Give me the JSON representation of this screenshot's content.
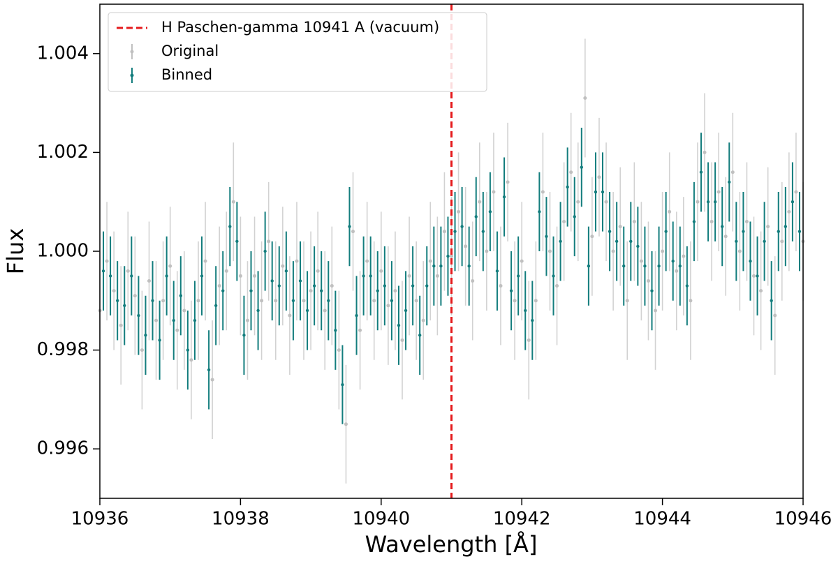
{
  "chart_data": {
    "type": "errorbar",
    "xlabel": "Wavelength [Å]",
    "ylabel": "Flux",
    "xlim": [
      10936,
      10946
    ],
    "ylim": [
      0.995,
      1.005
    ],
    "xticks": [
      10936,
      10938,
      10940,
      10942,
      10944,
      10946
    ],
    "yticks": [
      0.996,
      0.998,
      {
        "value": 1,
        "label": "1.000"
      },
      1.002,
      1.004
    ],
    "vline": {
      "x": 10941,
      "label": "H Paschen-gamma 10941 A (vacuum)",
      "color": "#e41a1c"
    },
    "legend": "upper left",
    "series": [
      {
        "name": "Original",
        "color": "#c0c0c0",
        "error": 0.0012,
        "x": [
          10936.0,
          10936.1,
          10936.2,
          10936.3,
          10936.4,
          10936.5,
          10936.6,
          10936.7,
          10936.8,
          10936.9,
          10937.0,
          10937.1,
          10937.2,
          10937.3,
          10937.4,
          10937.5,
          10937.6,
          10937.7,
          10937.8,
          10937.9,
          10938.0,
          10938.1,
          10938.2,
          10938.3,
          10938.4,
          10938.5,
          10938.6,
          10938.7,
          10938.8,
          10938.9,
          10939.0,
          10939.1,
          10939.2,
          10939.3,
          10939.4,
          10939.5,
          10939.6,
          10939.7,
          10939.8,
          10939.9,
          10940.0,
          10940.1,
          10940.2,
          10940.3,
          10940.4,
          10940.5,
          10940.6,
          10940.7,
          10940.8,
          10940.9,
          10941.0,
          10941.1,
          10941.2,
          10941.3,
          10941.4,
          10941.5,
          10941.6,
          10941.7,
          10941.8,
          10941.9,
          10942.0,
          10942.1,
          10942.2,
          10942.3,
          10942.4,
          10942.5,
          10942.6,
          10942.7,
          10942.8,
          10942.9,
          10943.0,
          10943.1,
          10943.2,
          10943.3,
          10943.4,
          10943.5,
          10943.6,
          10943.7,
          10943.8,
          10943.9,
          10944.0,
          10944.1,
          10944.2,
          10944.3,
          10944.4,
          10944.5,
          10944.6,
          10944.7,
          10944.8,
          10944.9,
          10945.0,
          10945.1,
          10945.2,
          10945.3,
          10945.4,
          10945.5,
          10945.6,
          10945.7,
          10945.8,
          10945.9,
          10946.0
        ],
        "values": [
          0.9988,
          0.9998,
          0.9992,
          0.9985,
          0.9996,
          0.9991,
          0.998,
          0.9994,
          0.9986,
          0.999,
          0.9997,
          0.9984,
          0.9988,
          0.9978,
          0.999,
          0.9998,
          0.9974,
          0.9993,
          0.9996,
          1.001,
          0.9995,
          0.9986,
          0.9995,
          0.999,
          1.0002,
          0.999,
          0.9997,
          0.9987,
          0.9998,
          0.999,
          0.9992,
          0.9996,
          0.9988,
          0.9993,
          0.998,
          0.9965,
          1.0004,
          0.9984,
          0.9998,
          0.999,
          0.9996,
          0.9989,
          0.9992,
          0.9982,
          0.9995,
          0.999,
          0.9986,
          0.9998,
          0.9995,
          1.0004,
          0.9999,
          1.0008,
          1.0001,
          0.9994,
          1.001,
          1.0,
          1.0012,
          0.9993,
          1.0014,
          0.999,
          0.9998,
          0.9982,
          0.999,
          1.0012,
          1.0,
          0.9993,
          1.0006,
          1.0016,
          1.001,
          1.0031,
          1.0003,
          1.0015,
          1.001,
          1.0,
          1.0005,
          0.999,
          1.0006,
          0.9998,
          0.9994,
          0.9988,
          1.0,
          1.0008,
          0.9996,
          0.9999,
          0.999,
          1.001,
          1.002,
          1.0006,
          1.0012,
          1.0003,
          1.0016,
          1.0,
          1.0006,
          0.9995,
          0.9992,
          1.0005,
          0.9987,
          1.0002,
          1.0008,
          1.0012,
          1.0002
        ]
      },
      {
        "name": "Binned",
        "color": "#137d7d",
        "error": 0.0008,
        "x": [
          10936.05,
          10936.15,
          10936.25,
          10936.35,
          10936.45,
          10936.55,
          10936.65,
          10936.75,
          10936.85,
          10936.95,
          10937.05,
          10937.15,
          10937.25,
          10937.35,
          10937.45,
          10937.55,
          10937.65,
          10937.75,
          10937.85,
          10937.95,
          10938.05,
          10938.15,
          10938.25,
          10938.35,
          10938.45,
          10938.55,
          10938.65,
          10938.75,
          10938.85,
          10938.95,
          10939.05,
          10939.15,
          10939.25,
          10939.35,
          10939.45,
          10939.55,
          10939.65,
          10939.75,
          10939.85,
          10939.95,
          10940.05,
          10940.15,
          10940.25,
          10940.35,
          10940.45,
          10940.55,
          10940.65,
          10940.75,
          10940.85,
          10940.95,
          10941.05,
          10941.15,
          10941.25,
          10941.35,
          10941.45,
          10941.55,
          10941.65,
          10941.75,
          10941.85,
          10941.95,
          10942.05,
          10942.15,
          10942.25,
          10942.35,
          10942.45,
          10942.55,
          10942.65,
          10942.75,
          10942.85,
          10942.95,
          10943.05,
          10943.15,
          10943.25,
          10943.35,
          10943.45,
          10943.55,
          10943.65,
          10943.75,
          10943.85,
          10943.95,
          10944.05,
          10944.15,
          10944.25,
          10944.35,
          10944.45,
          10944.55,
          10944.65,
          10944.75,
          10944.85,
          10944.95,
          10945.05,
          10945.15,
          10945.25,
          10945.35,
          10945.45,
          10945.55,
          10945.65,
          10945.75,
          10945.85,
          10945.95
        ],
        "values": [
          0.9996,
          0.9995,
          0.999,
          0.9989,
          0.9995,
          0.9987,
          0.9983,
          0.999,
          0.9982,
          0.9995,
          0.9986,
          0.9991,
          0.998,
          0.9986,
          0.9995,
          0.9976,
          0.9989,
          0.9992,
          1.0005,
          1.0002,
          0.9983,
          0.9992,
          0.9988,
          1.0,
          0.9994,
          0.9993,
          0.9996,
          0.999,
          0.9994,
          0.9988,
          0.9993,
          0.9992,
          0.999,
          0.9984,
          0.9973,
          1.0005,
          0.9987,
          0.9995,
          0.9995,
          0.9992,
          0.9993,
          0.999,
          0.9985,
          0.9988,
          0.9993,
          0.9983,
          0.9993,
          0.9997,
          0.9997,
          0.9999,
          1.0004,
          1.0005,
          0.9997,
          1.0007,
          1.0004,
          1.0008,
          0.9996,
          1.0011,
          0.9992,
          0.9995,
          0.9988,
          0.9986,
          1.0008,
          1.0003,
          0.9995,
          1.0002,
          1.0013,
          1.0007,
          1.0017,
          0.9997,
          1.0012,
          1.0012,
          1.0004,
          1.0002,
          0.9997,
          1.0002,
          1.0001,
          0.9997,
          0.9992,
          0.9997,
          1.0004,
          0.9998,
          0.9997,
          0.9993,
          1.0006,
          1.0016,
          1.001,
          1.001,
          1.0005,
          1.0014,
          1.0002,
          1.0004,
          0.9998,
          0.9995,
          1.0002,
          0.999,
          1.0004,
          1.0005,
          1.001,
          1.0004
        ]
      }
    ]
  }
}
